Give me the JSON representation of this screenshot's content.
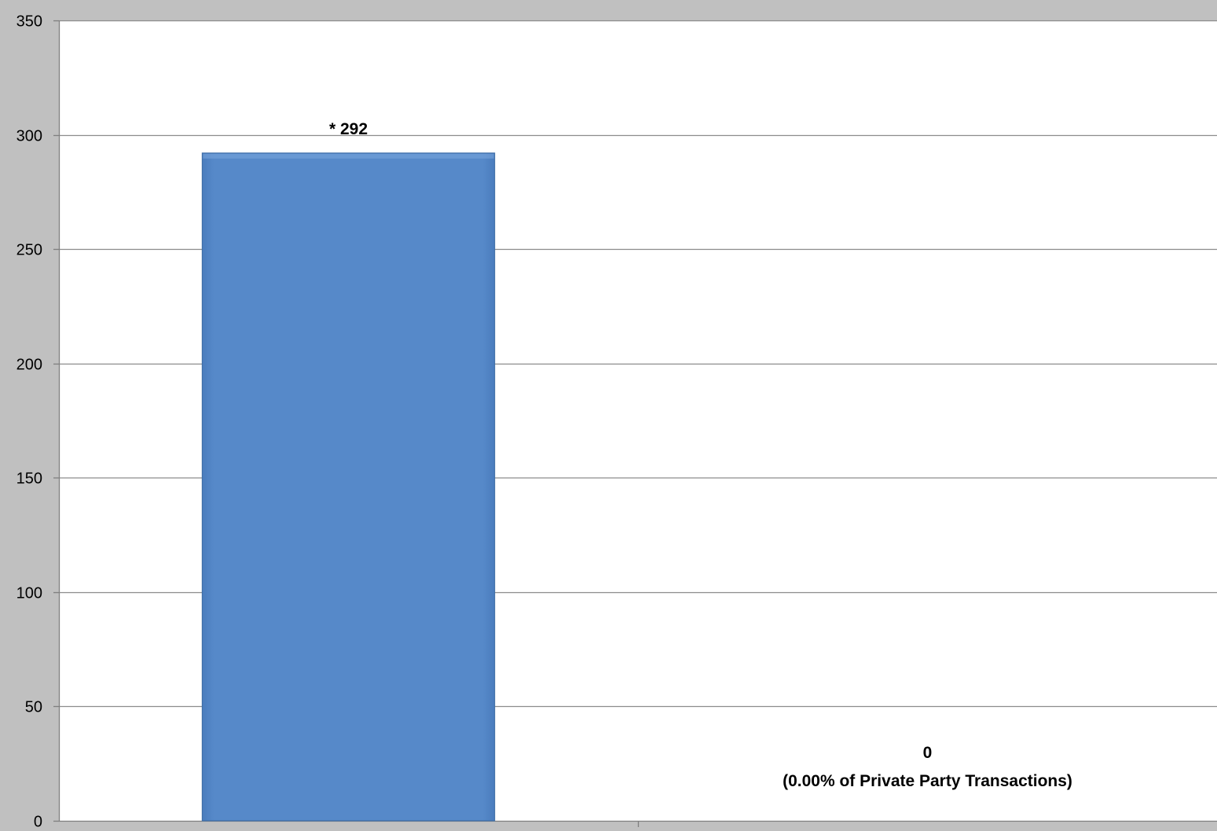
{
  "chart_data": {
    "type": "bar",
    "categories": [
      "",
      ""
    ],
    "values": [
      292,
      0
    ],
    "data_labels": [
      [
        "* 292"
      ],
      [
        "0",
        "(0.00% of Private Party Transactions)"
      ]
    ],
    "ylim": [
      0,
      350
    ],
    "yticks": [
      0,
      50,
      100,
      150,
      200,
      250,
      300,
      350
    ],
    "grid": true,
    "legend": "none",
    "colors": {
      "bar": "#5689c9",
      "bar_border": "#3f6fa8",
      "plot_background": "#ffffff",
      "page_background": "#c0c0c0",
      "gridline": "#8c8c8c"
    }
  }
}
